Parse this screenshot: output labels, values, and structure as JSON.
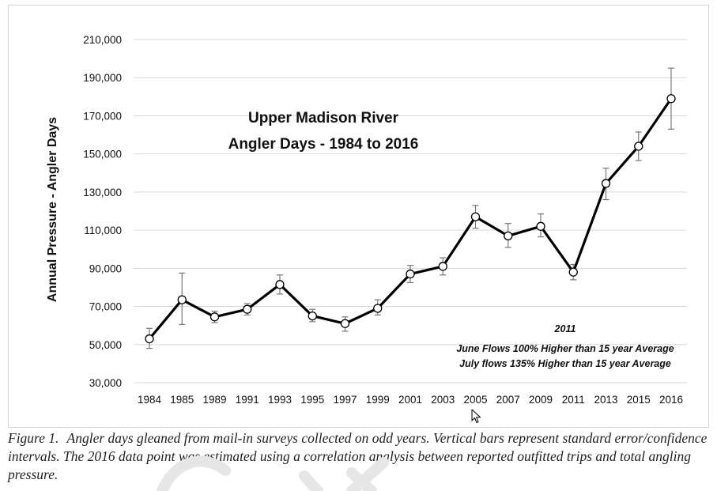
{
  "chart_data": {
    "type": "line",
    "title": [
      "Upper Madison River",
      "Angler Days - 1984 to 2016"
    ],
    "xlabel": "",
    "ylabel": "Annual Pressure - Angler Days",
    "ylim": [
      30000,
      210000
    ],
    "yticks": [
      30000,
      50000,
      70000,
      90000,
      110000,
      130000,
      150000,
      170000,
      190000,
      210000
    ],
    "ytick_labels": [
      "30,000",
      "50,000",
      "70,000",
      "90,000",
      "110,000",
      "130,000",
      "150,000",
      "170,000",
      "190,000",
      "210,000"
    ],
    "grid": true,
    "categories": [
      "1984",
      "1985",
      "1989",
      "1991",
      "1993",
      "1995",
      "1997",
      "1999",
      "2001",
      "2003",
      "2005",
      "2007",
      "2009",
      "2011",
      "2013",
      "2015",
      "2016"
    ],
    "series": [
      {
        "name": "Angler Days",
        "values": [
          53000,
          73500,
          64500,
          68500,
          81500,
          65000,
          61000,
          69000,
          87000,
          91000,
          117000,
          107000,
          112000,
          88000,
          134500,
          154000,
          179000
        ],
        "error_low": [
          48000,
          60500,
          61500,
          65500,
          76500,
          62000,
          57000,
          65500,
          82500,
          86500,
          111000,
          101000,
          106500,
          84000,
          126000,
          146500,
          163000
        ],
        "error_high": [
          58500,
          87500,
          67500,
          71500,
          86500,
          68500,
          64500,
          73500,
          91500,
          95500,
          123000,
          113500,
          118500,
          92000,
          142500,
          161500,
          195000
        ]
      }
    ],
    "annotations": [
      "2011",
      "June Flows 100% Higher than 15 year Average",
      "July flows 135% Higher than 15 year Average"
    ]
  },
  "caption": {
    "label": "Figure 1.",
    "text": "Angler days gleaned from mail-in surveys collected on odd years. Vertical bars represent standard error/confidence intervals.  The 2016 data point was estimated using a correlation analysis between reported outfitted trips and total angling pressure."
  }
}
